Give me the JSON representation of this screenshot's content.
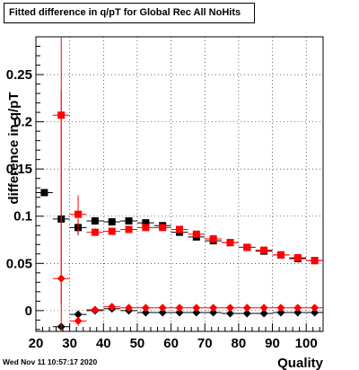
{
  "title": "Fitted difference in q/pT for Global Rec All NoHits",
  "footer": "Wed Nov 11 10:57:17 2020",
  "chart_data": {
    "type": "scatter",
    "title": "Fitted difference in q/pT for Global Rec All NoHits",
    "xlabel": "Quality",
    "ylabel": "difference in q/pT",
    "xlim": [
      20,
      105
    ],
    "ylim": [
      -0.022,
      0.29
    ],
    "x_ticks": [
      20,
      30,
      40,
      50,
      60,
      70,
      80,
      90,
      100
    ],
    "y_ticks": [
      0,
      0.05,
      0.1,
      0.15,
      0.2,
      0.25
    ],
    "y_tick_labels": [
      "0",
      "0.05",
      "0.1",
      "0.15",
      "0.2",
      "0.25"
    ],
    "grid": true,
    "series": [
      {
        "marker": "square",
        "color": "#000000",
        "x": [
          22.5,
          27.5,
          32.5,
          37.5,
          42.5,
          47.5,
          52.5,
          57.5,
          62.5,
          67.5,
          72.5,
          77.5,
          82.5,
          87.5,
          92.5,
          97.5,
          102.5
        ],
        "y": [
          0.125,
          0.097,
          0.088,
          0.095,
          0.094,
          0.095,
          0.093,
          0.09,
          0.083,
          0.078,
          0.074,
          0.072,
          0.067,
          0.063,
          0.059,
          0.055,
          0.053
        ],
        "yerr": [
          0,
          0,
          0.008,
          0.004,
          0.003,
          0.002,
          0.002,
          0.002,
          0.002,
          0.002,
          0.002,
          0.002,
          0.002,
          0.002,
          0.002,
          0.002,
          0.002
        ]
      },
      {
        "marker": "square",
        "color": "#ff0000",
        "x": [
          27.5,
          32.5,
          37.5,
          42.5,
          47.5,
          52.5,
          57.5,
          62.5,
          67.5,
          72.5,
          77.5,
          82.5,
          87.5,
          92.5,
          97.5,
          102.5
        ],
        "y": [
          0.207,
          0.102,
          0.083,
          0.084,
          0.086,
          0.088,
          0.088,
          0.086,
          0.081,
          0.076,
          0.072,
          0.067,
          0.064,
          0.059,
          0.056,
          0.053
        ],
        "yerr": [
          0.2,
          0.02,
          0.004,
          0.003,
          0.002,
          0.002,
          0.002,
          0.002,
          0.002,
          0.002,
          0.002,
          0.002,
          0.002,
          0.002,
          0.002,
          0.002
        ]
      },
      {
        "marker": "diamond",
        "color": "#000000",
        "x": [
          27.5,
          32.5,
          37.5,
          42.5,
          47.5,
          52.5,
          57.5,
          62.5,
          67.5,
          72.5,
          77.5,
          82.5,
          87.5,
          92.5,
          97.5,
          102.5
        ],
        "y": [
          -0.017,
          -0.004,
          0.0,
          0.002,
          0.0,
          -0.002,
          -0.002,
          -0.002,
          -0.002,
          -0.002,
          -0.003,
          -0.003,
          -0.003,
          -0.002,
          -0.002,
          -0.002
        ],
        "yerr": [
          0,
          0.003,
          0.002,
          0.001,
          0.001,
          0.001,
          0.001,
          0.001,
          0.001,
          0.001,
          0.001,
          0.001,
          0.001,
          0.001,
          0.001,
          0.001
        ]
      },
      {
        "marker": "diamond",
        "color": "#ff0000",
        "x": [
          27.5,
          32.5,
          37.5,
          42.5,
          47.5,
          52.5,
          57.5,
          62.5,
          67.5,
          72.5,
          77.5,
          82.5,
          87.5,
          92.5,
          97.5,
          102.5
        ],
        "y": [
          0.034,
          -0.011,
          0.001,
          0.004,
          0.003,
          0.003,
          0.003,
          0.003,
          0.003,
          0.003,
          0.003,
          0.003,
          0.003,
          0.003,
          0.003,
          0.003
        ],
        "yerr": [
          0.2,
          0.005,
          0.002,
          0.001,
          0.001,
          0.001,
          0.001,
          0.001,
          0.001,
          0.001,
          0.001,
          0.001,
          0.001,
          0.001,
          0.001,
          0.001
        ]
      }
    ]
  }
}
